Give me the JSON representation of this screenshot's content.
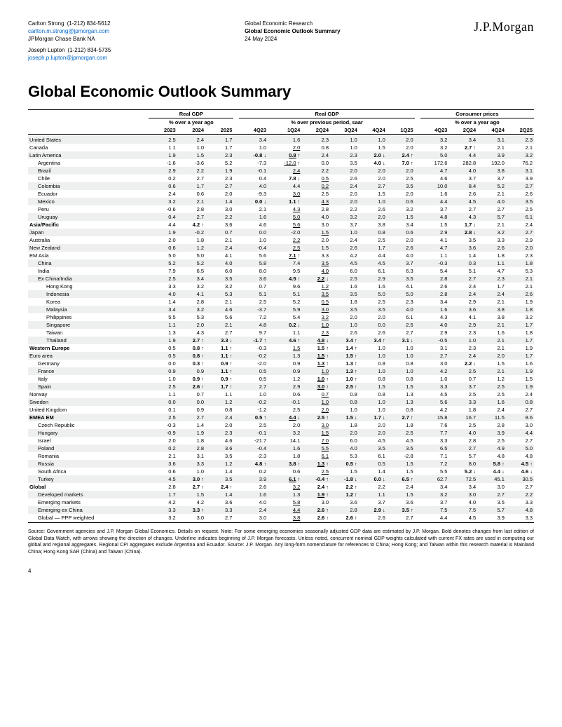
{
  "header": {
    "left": {
      "name1": "Carlton Strong",
      "phone1": "(1-212) 834-5612",
      "email1": "carlton.m.strong@jpmorgan.com",
      "org": "JPMorgan Chase Bank NA",
      "name2": "Joseph Lupton",
      "phone2": "(1-212) 834-5735",
      "email2": "joseph.p.lupton@jpmorgan.com"
    },
    "mid": {
      "l1": "Global Economic Research",
      "l2": "Global Economic Outlook Summary",
      "l3": "24 May 2024"
    },
    "logo": "J.P.Morgan"
  },
  "title": "Global Economic Outlook Summary",
  "groups": {
    "g1": {
      "a": "Real GDP",
      "as": "% over a year ago",
      "b": "Real GDP",
      "bs": "% over previous period, saar",
      "c": "Consumer prices",
      "cs": "% over a year ago"
    },
    "cols": [
      "2023",
      "2024",
      "2025",
      "4Q23",
      "1Q24",
      "2Q24",
      "3Q24",
      "4Q24",
      "1Q25",
      "4Q23",
      "2Q24",
      "4Q24",
      "2Q25"
    ]
  },
  "rows": [
    {
      "section": true,
      "band": false,
      "label": "",
      "v": []
    },
    {
      "band": true,
      "label": "United States",
      "v": [
        "2.5",
        "2.4",
        "1.7",
        "3.4",
        "1.6",
        "2.3",
        "1.0",
        "1.0",
        "2.0",
        "3.2",
        "3.4",
        "3.1",
        "2.3"
      ]
    },
    {
      "label": "Canada",
      "v": [
        "1.1",
        "1.0",
        "1.7",
        "1.0",
        "2.0",
        "0.8",
        "1.0",
        "1.5",
        "2.0",
        "3.2",
        "2.7↑",
        "2.1",
        "2.1"
      ],
      "u": [
        4
      ],
      "b": [
        10
      ]
    },
    {
      "band": true,
      "label": "Latin America",
      "v": [
        "1.9",
        "1.5",
        "2.3",
        "-0.8↓",
        "0.8↑",
        "2.4",
        "2.3",
        "2.0↓",
        "2.4↑",
        "5.0",
        "4.4",
        "3.9",
        "3.2"
      ],
      "b": [
        3,
        4,
        7,
        8
      ],
      "u": [
        4
      ]
    },
    {
      "ind": true,
      "label": "Argentina",
      "v": [
        "-1.6",
        "-3.6",
        "5.2",
        "-7.3",
        "-12.0↑",
        "0.0",
        "3.5",
        "4.0↓",
        "7.0↑",
        "172.6",
        "282.8",
        "192.0",
        "76.2"
      ],
      "b": [
        7,
        8
      ],
      "u": [
        4
      ]
    },
    {
      "band": true,
      "ind": true,
      "label": "Brazil",
      "v": [
        "2.9",
        "2.2",
        "1.9",
        "-0.1",
        "2.4",
        "2.2",
        "2.0",
        "2.0",
        "2.0",
        "4.7",
        "4.0",
        "3.8",
        "3.1"
      ],
      "u": [
        4
      ]
    },
    {
      "ind": true,
      "label": "Chile",
      "v": [
        "0.2",
        "2.7",
        "2.3",
        "0.4",
        "7.8↓",
        "0.5",
        "2.6",
        "2.0",
        "2.5",
        "4.6",
        "3.7",
        "3.7",
        "3.9"
      ],
      "b": [
        4
      ],
      "u": [
        5
      ]
    },
    {
      "band": true,
      "ind": true,
      "label": "Colombia",
      "v": [
        "0.6",
        "1.7",
        "2.7",
        "4.0",
        "4.4",
        "0.2",
        "2.4",
        "2.7",
        "3.5",
        "10.0",
        "8.4",
        "5.2",
        "2.7"
      ],
      "u": [
        5
      ]
    },
    {
      "ind": true,
      "label": "Ecuador",
      "v": [
        "2.4",
        "0.6",
        "2.0",
        "-9.3",
        "3.0",
        "2.5",
        "2.0",
        "1.5",
        "2.0",
        "1.6",
        "2.6",
        "2.1",
        "2.6"
      ],
      "u": [
        4
      ]
    },
    {
      "band": true,
      "ind": true,
      "label": "Mexico",
      "v": [
        "3.2",
        "2.1",
        "1.4",
        "0.0↓",
        "1.1↑",
        "4.3",
        "2.0",
        "1.0",
        "0.6",
        "4.4",
        "4.5",
        "4.0",
        "3.5"
      ],
      "b": [
        3,
        4
      ],
      "u": [
        5
      ]
    },
    {
      "ind": true,
      "label": "Peru",
      "v": [
        "-0.6",
        "2.8",
        "3.0",
        "2.1",
        "4.3",
        "2.8",
        "2.2",
        "2.6",
        "3.2",
        "3.7",
        "2.7",
        "2.7",
        "2.5"
      ],
      "u": [
        4
      ]
    },
    {
      "band": true,
      "ind": true,
      "label": "Uruguay",
      "v": [
        "0.4",
        "2.7",
        "2.2",
        "1.6",
        "5.0",
        "4.0",
        "3.2",
        "2.0",
        "1.5",
        "4.8",
        "4.3",
        "5.7",
        "6.1"
      ],
      "u": [
        4
      ]
    },
    {
      "section": true,
      "label": "Asia/Pacific",
      "v": [
        "4.4",
        "4.2↑",
        "3.6",
        "4.6",
        "5.6",
        "3.0",
        "3.7",
        "3.8",
        "3.4",
        "1.5",
        "1.7↓",
        "2.1",
        "2.4"
      ],
      "b": [
        1,
        10
      ],
      "u": [
        4
      ]
    },
    {
      "band": true,
      "label": "Japan",
      "v": [
        "1.9",
        "-0.2",
        "0.7",
        "0.0",
        "-2.0",
        "1.5",
        "1.0",
        "0.8",
        "0.6",
        "2.9",
        "2.8↓",
        "3.2",
        "2.7"
      ],
      "b": [
        10
      ],
      "u": [
        5
      ]
    },
    {
      "label": "Australia",
      "v": [
        "2.0",
        "1.8",
        "2.1",
        "1.0",
        "2.2",
        "2.0",
        "2.4",
        "2.5",
        "2.0",
        "4.1",
        "3.5",
        "3.3",
        "2.9"
      ],
      "u": [
        4
      ]
    },
    {
      "band": true,
      "label": "New Zealand",
      "v": [
        "0.6",
        "1.2",
        "2.4",
        "-0.4",
        "2.5",
        "1.5",
        "2.6",
        "1.7",
        "2.6",
        "4.7",
        "3.6",
        "2.6",
        "2.0"
      ],
      "u": [
        4
      ]
    },
    {
      "label": "EM Asia",
      "v": [
        "5.0",
        "5.0",
        "4.1",
        "5.6",
        "7.1↑",
        "3.3",
        "4.2",
        "4.4",
        "4.0",
        "1.1",
        "1.4",
        "1.8",
        "2.3"
      ],
      "b": [
        4
      ],
      "u": [
        4
      ]
    },
    {
      "band": true,
      "ind": true,
      "label": "China",
      "v": [
        "5.2",
        "5.2",
        "4.0",
        "5.8",
        "7.4",
        "3.5",
        "4.5",
        "4.5",
        "3.7",
        "-0.3",
        "0.3",
        "1.1",
        "1.8"
      ],
      "u": [
        5
      ]
    },
    {
      "ind": true,
      "label": "India",
      "v": [
        "7.9",
        "6.5",
        "6.0",
        "8.0",
        "9.5",
        "4.0",
        "6.0",
        "6.1",
        "6.3",
        "5.4",
        "5.1",
        "4.7",
        "5.3"
      ],
      "u": [
        5
      ]
    },
    {
      "band": true,
      "ind": true,
      "label": "Ex China/India",
      "v": [
        "2.5",
        "3.4",
        "3.5",
        "3.6",
        "4.5↑",
        "2.2↓",
        "2.5",
        "2.9",
        "3.5",
        "2.8",
        "2.7",
        "2.3",
        "2.1"
      ],
      "b": [
        4,
        5
      ],
      "u": [
        5
      ]
    },
    {
      "ind": true,
      "ind2": true,
      "label": "Hong Kong",
      "v": [
        "3.3",
        "3.2",
        "3.2",
        "0.7",
        "9.6",
        "1.2",
        "1.6",
        "1.6",
        "4.1",
        "2.6",
        "2.4",
        "1.7",
        "2.1"
      ],
      "u": [
        5
      ]
    },
    {
      "band": true,
      "ind": true,
      "ind2": true,
      "label": "Indonesia",
      "v": [
        "4.0",
        "4.1",
        "5.3",
        "5.1",
        "5.1",
        "3.5",
        "3.5",
        "5.0",
        "5.0",
        "2.8",
        "2.4",
        "2.4",
        "2.6"
      ],
      "u": [
        5
      ]
    },
    {
      "ind": true,
      "ind2": true,
      "label": "Korea",
      "v": [
        "1.4",
        "2.8",
        "2.1",
        "2.5",
        "5.2",
        "0.5",
        "1.8",
        "2.5",
        "2.3",
        "3.4",
        "2.9",
        "2.1",
        "1.9"
      ],
      "u": [
        5
      ]
    },
    {
      "band": true,
      "ind": true,
      "ind2": true,
      "label": "Malaysia",
      "v": [
        "3.4",
        "3.2",
        "4.6",
        "-3.7",
        "5.9",
        "3.0",
        "3.5",
        "3.5",
        "4.0",
        "1.6",
        "3.6",
        "3.8",
        "1.8"
      ],
      "u": [
        5
      ]
    },
    {
      "ind": true,
      "ind2": true,
      "label": "Philippines",
      "v": [
        "5.5",
        "5.3",
        "5.6",
        "7.2",
        "5.4",
        "3.2",
        "2.0",
        "2.0",
        "6.1",
        "4.3",
        "4.1",
        "3.8",
        "3.2"
      ],
      "u": [
        5
      ]
    },
    {
      "band": true,
      "ind": true,
      "ind2": true,
      "label": "Singapore",
      "v": [
        "1.1",
        "2.0",
        "2.1",
        "4.8",
        "0.2↓",
        "1.0",
        "1.0",
        "0.0",
        "2.5",
        "4.0",
        "2.9",
        "2.1",
        "1.7"
      ],
      "b": [
        4
      ],
      "u": [
        5
      ]
    },
    {
      "ind": true,
      "ind2": true,
      "label": "Taiwan",
      "v": [
        "1.3",
        "4.3",
        "2.7",
        "9.7",
        "1.1",
        "2.3",
        "2.6",
        "2.6",
        "2.7",
        "2.9",
        "2.3",
        "1.6",
        "1.8"
      ],
      "u": [
        5
      ]
    },
    {
      "band": true,
      "ind": true,
      "ind2": true,
      "label": "Thailand",
      "v": [
        "1.9",
        "2.7↑",
        "3.3↓",
        "-1.7↑",
        "4.6↑",
        "4.8↓",
        "3.4↑",
        "3.4↑",
        "3.1↓",
        "-0.5",
        "1.0",
        "2.1",
        "1.7"
      ],
      "b": [
        1,
        2,
        3,
        4,
        5,
        6,
        7,
        8
      ],
      "u": [
        5
      ]
    },
    {
      "section": true,
      "label": "Western Europe",
      "v": [
        "0.5",
        "0.8↑",
        "1.1↑",
        "-0.3",
        "1.5",
        "1.5↑",
        "1.4↑",
        "1.0",
        "1.0",
        "3.1",
        "2.3",
        "2.1",
        "1.9"
      ],
      "b": [
        1,
        2,
        5,
        6
      ],
      "u": [
        4
      ]
    },
    {
      "band": true,
      "label": "Euro area",
      "v": [
        "0.5",
        "0.8↑",
        "1.1↑",
        "-0.2",
        "1.3",
        "1.5↑",
        "1.5↑",
        "1.0",
        "1.0",
        "2.7",
        "2.4",
        "2.0",
        "1.7"
      ],
      "b": [
        1,
        2,
        5,
        6
      ],
      "u": [
        5
      ]
    },
    {
      "ind": true,
      "label": "Germany",
      "v": [
        "0.0",
        "0.3↑",
        "0.9↑",
        "-2.0",
        "0.9",
        "1.3↑",
        "1.3↑",
        "0.8",
        "0.8",
        "3.0",
        "2.2↓",
        "1.5",
        "1.6"
      ],
      "b": [
        1,
        2,
        5,
        6,
        10
      ],
      "u": [
        5
      ]
    },
    {
      "band": true,
      "ind": true,
      "label": "France",
      "v": [
        "0.9",
        "0.9",
        "1.1↑",
        "0.5",
        "0.9",
        "1.0",
        "1.3↑",
        "1.0",
        "1.0",
        "4.2",
        "2.5",
        "2.1",
        "1.9"
      ],
      "b": [
        2,
        6
      ],
      "u": [
        5
      ]
    },
    {
      "ind": true,
      "label": "Italy",
      "v": [
        "1.0",
        "0.9↑",
        "0.9↑",
        "0.5",
        "1.2",
        "1.0↑",
        "1.0↑",
        "0.8",
        "0.8",
        "1.0",
        "0.7",
        "1.2",
        "1.5"
      ],
      "b": [
        1,
        2,
        5,
        6
      ],
      "u": [
        5
      ]
    },
    {
      "band": true,
      "ind": true,
      "label": "Spain",
      "v": [
        "2.5",
        "2.6↑",
        "1.7↑",
        "2.7",
        "2.9",
        "3.0↑",
        "2.5↑",
        "1.5",
        "1.5",
        "3.3",
        "3.7",
        "2.5",
        "1.9"
      ],
      "b": [
        1,
        2,
        5,
        6
      ],
      "u": [
        5
      ]
    },
    {
      "label": "Norway",
      "v": [
        "1.1",
        "0.7",
        "1.1",
        "1.0",
        "0.6",
        "0.7",
        "0.8",
        "0.8",
        "1.3",
        "4.5",
        "2.5",
        "2.5",
        "2.4"
      ],
      "u": [
        5
      ]
    },
    {
      "band": true,
      "label": "Sweden",
      "v": [
        "0.0",
        "0.0",
        "1.2",
        "-0.2",
        "-0.1",
        "1.0",
        "0.8",
        "1.0",
        "1.3",
        "5.6",
        "3.3",
        "1.6",
        "0.8"
      ],
      "u": [
        5
      ]
    },
    {
      "label": "United Kingdom",
      "v": [
        "0.1",
        "0.9",
        "0.8",
        "-1.2",
        "2.5",
        "2.0",
        "1.0",
        "1.0",
        "0.8",
        "4.2",
        "1.8",
        "2.4",
        "2.7"
      ],
      "u": [
        5
      ]
    },
    {
      "band": true,
      "section": true,
      "label": "EMEA EM",
      "v": [
        "2.5",
        "2.7",
        "2.4",
        "0.5↑",
        "4.4↓",
        "2.5↑",
        "1.5↓",
        "1.7↓",
        "2.7↑",
        "15.8",
        "16.7",
        "11.5",
        "8.6"
      ],
      "b": [
        3,
        4,
        5,
        6,
        7,
        8
      ],
      "u": [
        4
      ]
    },
    {
      "ind": true,
      "label": "Czech Republic",
      "v": [
        "-0.3",
        "1.4",
        "2.0",
        "2.5",
        "2.0",
        "3.0",
        "1.8",
        "2.0",
        "1.8",
        "7.6",
        "2.5",
        "2.8",
        "3.0"
      ],
      "u": [
        5
      ]
    },
    {
      "band": true,
      "ind": true,
      "label": "Hungary",
      "v": [
        "-0.9",
        "1.9",
        "2.3",
        "-0.1",
        "3.2",
        "1.5",
        "2.0",
        "2.0",
        "2.5",
        "7.7",
        "4.0",
        "3.9",
        "4.4"
      ],
      "u": [
        5
      ]
    },
    {
      "ind": true,
      "label": "Israel",
      "v": [
        "2.0",
        "1.8",
        "4.6",
        "-21.7",
        "14.1",
        "7.0",
        "6.0",
        "4.5",
        "4.5",
        "3.3",
        "2.8",
        "2.5",
        "2.7"
      ],
      "u": [
        5
      ]
    },
    {
      "band": true,
      "ind": true,
      "label": "Poland",
      "v": [
        "0.2",
        "2.8",
        "3.6",
        "-0.4",
        "1.6",
        "5.5",
        "4.0",
        "3.5",
        "3.5",
        "6.5",
        "2.7",
        "4.9",
        "5.0"
      ],
      "u": [
        5
      ]
    },
    {
      "ind": true,
      "label": "Romania",
      "v": [
        "2.1",
        "3.1",
        "3.5",
        "-2.3",
        "1.8",
        "6.1",
        "5.3",
        "6.1",
        "-2.8",
        "7.1",
        "5.7",
        "4.8",
        "4.8"
      ],
      "u": [
        5
      ]
    },
    {
      "band": true,
      "ind": true,
      "label": "Russia",
      "v": [
        "3.6",
        "3.3",
        "1.2",
        "4.8↑",
        "3.8↑",
        "1.3↑",
        "0.5↑",
        "0.5",
        "1.5",
        "7.2",
        "8.0",
        "5.8↑",
        "4.5↑"
      ],
      "b": [
        3,
        4,
        5,
        6,
        11,
        12
      ],
      "u": [
        5
      ]
    },
    {
      "ind": true,
      "label": "South Africa",
      "v": [
        "0.6",
        "1.0",
        "1.4",
        "0.2",
        "0.6",
        "2.5",
        "1.5",
        "1.4",
        "1.5",
        "5.5",
        "5.2↓",
        "4.4↓",
        "4.6↓"
      ],
      "b": [
        10,
        11,
        12
      ],
      "u": [
        5
      ]
    },
    {
      "band": true,
      "ind": true,
      "label": "Turkey",
      "v": [
        "4.5",
        "3.0↑",
        "3.5",
        "3.9",
        "6.1↑",
        "-0.4↑",
        "-1.8↓",
        "0.0↓",
        "6.5↑",
        "62.7",
        "72.5",
        "45.1",
        "30.5"
      ],
      "b": [
        1,
        4,
        5,
        6,
        7,
        8
      ],
      "u": [
        4
      ]
    },
    {
      "section": true,
      "label": "Global",
      "v": [
        "2.8",
        "2.7↑",
        "2.4↑",
        "2.6",
        "3.2",
        "2.4↑",
        "2.2↑",
        "2.2",
        "2.4",
        "3.4",
        "3.4",
        "3.0",
        "2.7"
      ],
      "b": [
        1,
        2,
        5,
        6
      ],
      "u": [
        4
      ]
    },
    {
      "band": true,
      "ind": true,
      "label": "Developed markets",
      "v": [
        "1.7",
        "1.5",
        "1.4",
        "1.6",
        "1.3",
        "1.9↑",
        "1.2↑",
        "1.1",
        "1.5",
        "3.2",
        "3.0",
        "2.7",
        "2.2"
      ],
      "b": [
        5,
        6
      ],
      "u": [
        5
      ]
    },
    {
      "ind": true,
      "label": "Emerging markets",
      "v": [
        "4.2",
        "4.2",
        "3.6",
        "4.0",
        "5.8",
        "3.0",
        "3.6",
        "3.7",
        "3.6",
        "3.7",
        "4.0",
        "3.5",
        "3.3"
      ],
      "u": [
        4
      ]
    },
    {
      "band": true,
      "ind": true,
      "label": "Emerging ex China",
      "v": [
        "3.3",
        "3.3↑",
        "3.3",
        "2.4",
        "4.4",
        "2.6↑",
        "2.8",
        "2.9↓",
        "3.5↑",
        "7.5",
        "7.5",
        "5.7",
        "4.8"
      ],
      "b": [
        1,
        5,
        7,
        8
      ],
      "u": [
        4
      ]
    },
    {
      "ind": true,
      "label": "Global — PPP weighted",
      "v": [
        "3.2",
        "3.0",
        "2.7",
        "3.0",
        "3.8",
        "2.6↑",
        "2.6↑",
        "2.6",
        "2.7",
        "4.4",
        "4.5",
        "3.9",
        "3.3"
      ],
      "b": [
        5,
        6
      ],
      "u": [
        4
      ]
    }
  ],
  "source": "Source: Government agencies and J.P. Morgan Global Economics. Details on request. Note: For some emerging economies seasonally adjusted GDP data are estimated by J.P. Morgan. Bold denotes changes from last edition of Global Data Watch, with arrows showing the direction of changes. Underline indicates beginning of J.P. Morgan forecasts. Unless noted, concurrent nominal GDP weights calculated with current FX rates are used in computing our global and regional aggregates. Regional CPI aggregates exclude Argentina and Ecuador. Source: J.P. Morgan. Any long-form nomenclature for references to China; Hong Kong; and Taiwan within this research material is Mainland China; Hong Kong SAR (China) and Taiwan (China).",
  "page": "4"
}
